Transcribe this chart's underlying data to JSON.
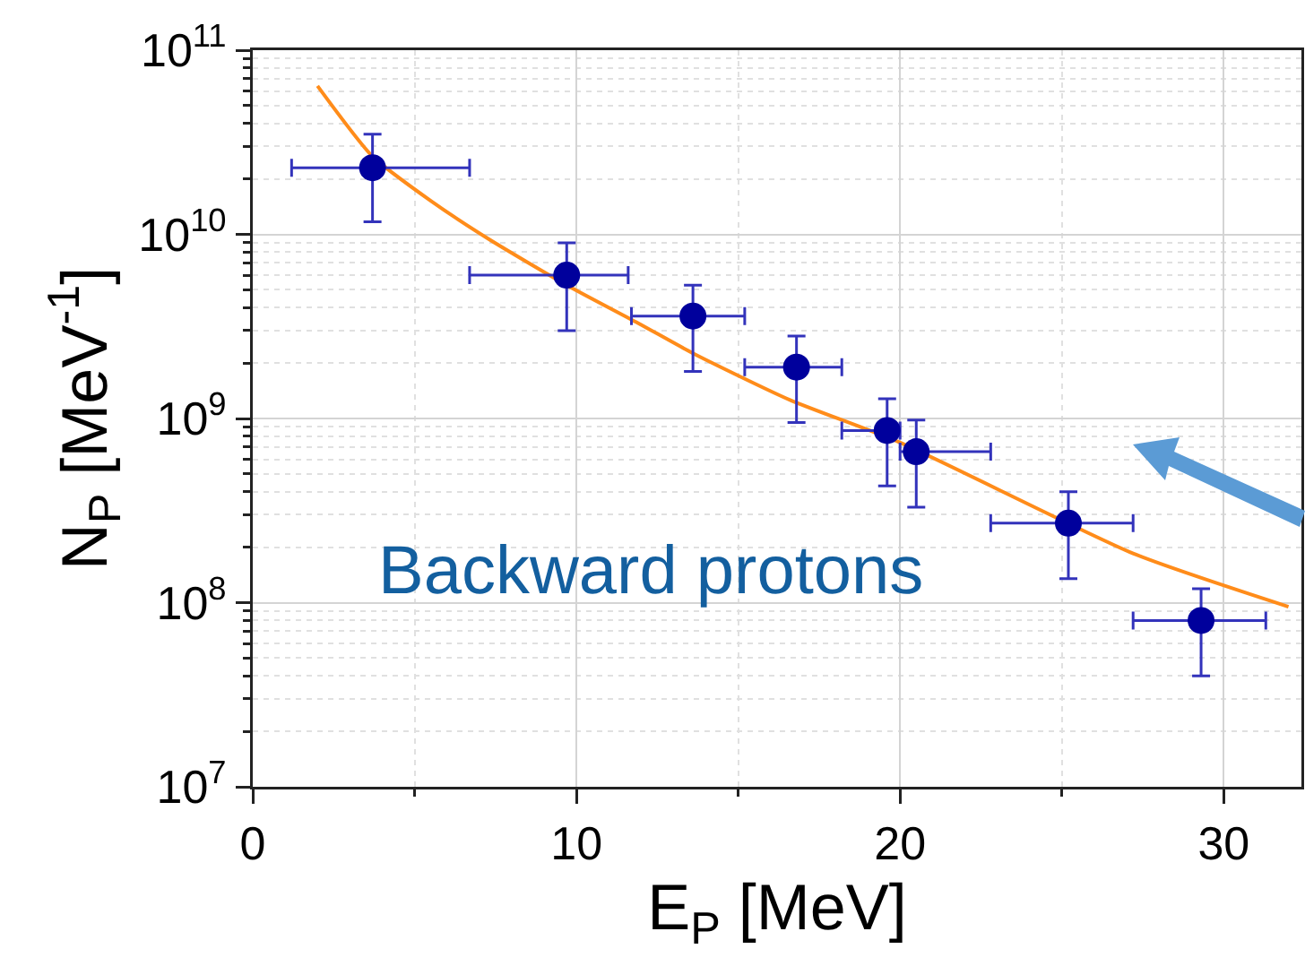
{
  "chart_data": {
    "type": "scatter",
    "xlabel": "E$_{P}$ [MeV]",
    "ylabel": "N$_{P}$ [MeV$^{-1}$]",
    "log": "y",
    "grid": true,
    "marker": "circle",
    "xlim": [
      0,
      32.4
    ],
    "xticks": [
      0,
      10,
      20,
      30
    ],
    "ylim": [
      10000000.0,
      100000000000.0
    ],
    "yticks": [
      {
        "value": 10000000.0,
        "label": "10$^{7}$"
      },
      {
        "value": 100000000.0,
        "label": "10$^{8}$"
      },
      {
        "value": 1000000000.0,
        "label": "10$^{9}$"
      },
      {
        "value": 10000000000.0,
        "label": "10$^{10}$"
      },
      {
        "value": 100000000000.0,
        "label": "10$^{11}$"
      }
    ],
    "series": [
      {
        "color": "#00009c",
        "x": [
          3.7,
          9.7,
          13.6,
          16.8,
          19.6,
          20.5,
          25.2,
          29.3
        ],
        "values": [
          23000000000.0,
          6000000000.0,
          3600000000.0,
          1900000000.0,
          860000000.0,
          660000000.0,
          270000000.0,
          80000000.0
        ],
        "errors": [
          [
            11700000000.0,
            35000000000.0
          ],
          [
            3000000000.0,
            9000000000.0
          ],
          [
            1800000000.0,
            5300000000.0
          ],
          [
            950000000.0,
            2800000000.0
          ],
          [
            430000000.0,
            1280000000.0
          ],
          [
            330000000.0,
            980000000.0
          ],
          [
            135000000.0,
            400000000.0
          ],
          [
            40000000.0,
            119000000.0
          ]
        ],
        "xerrors": [
          [
            1.2,
            6.7
          ],
          [
            6.7,
            11.6
          ],
          [
            11.7,
            15.2
          ],
          [
            15.2,
            18.2
          ],
          [
            18.2,
            20.0
          ],
          [
            20.0,
            22.8
          ],
          [
            22.8,
            27.2
          ],
          [
            27.2,
            31.3
          ]
        ]
      },
      {
        "type": "line",
        "color": "#ff8c1a",
        "marker": "none",
        "line_style": "solid",
        "x": [
          2,
          3.7,
          5.5,
          7.3,
          9.7,
          11.9,
          13.6,
          16.6,
          20,
          27.2,
          32
        ],
        "values": [
          64000000000.0,
          26500000000.0,
          15200000000.0,
          9400000000.0,
          5300000000.0,
          3300000000.0,
          2260000000.0,
          1260000000.0,
          740000000.0,
          185000000.0,
          95000000.0
        ]
      }
    ],
    "annotations": [
      "Backward protons"
    ]
  }
}
